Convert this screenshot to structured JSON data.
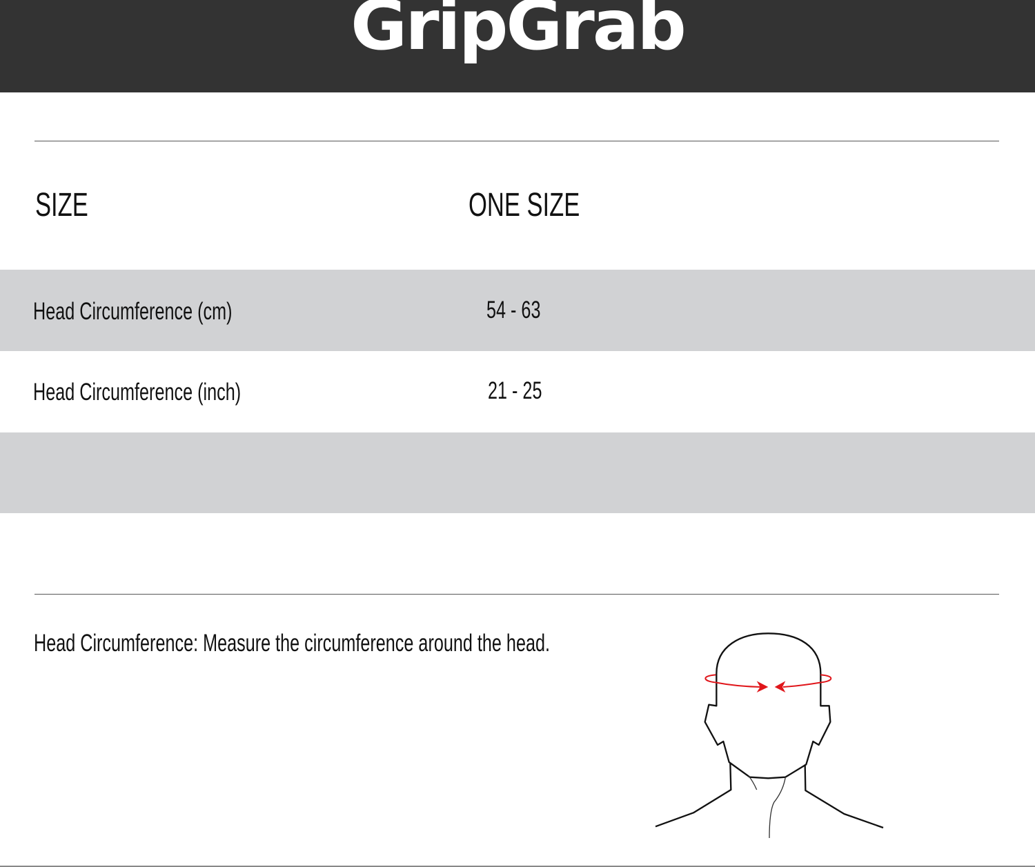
{
  "brand": {
    "logo_text": "GripGrab",
    "header_color": "#333333"
  },
  "table": {
    "header": {
      "label": "SIZE",
      "size": "ONE SIZE"
    },
    "rows": [
      {
        "label": "Head Circumference (cm)",
        "value": "54 - 63"
      },
      {
        "label": "Head Circumference (inch)",
        "value": "21 - 25"
      },
      {
        "label": "",
        "value": ""
      }
    ],
    "stripe_color": "#d1d2d4"
  },
  "instructions": {
    "text": "Head Circumference: Measure the circumference around the head."
  },
  "illustration": {
    "name": "head-measurement-diagram",
    "arrow_color": "#e0161b"
  }
}
